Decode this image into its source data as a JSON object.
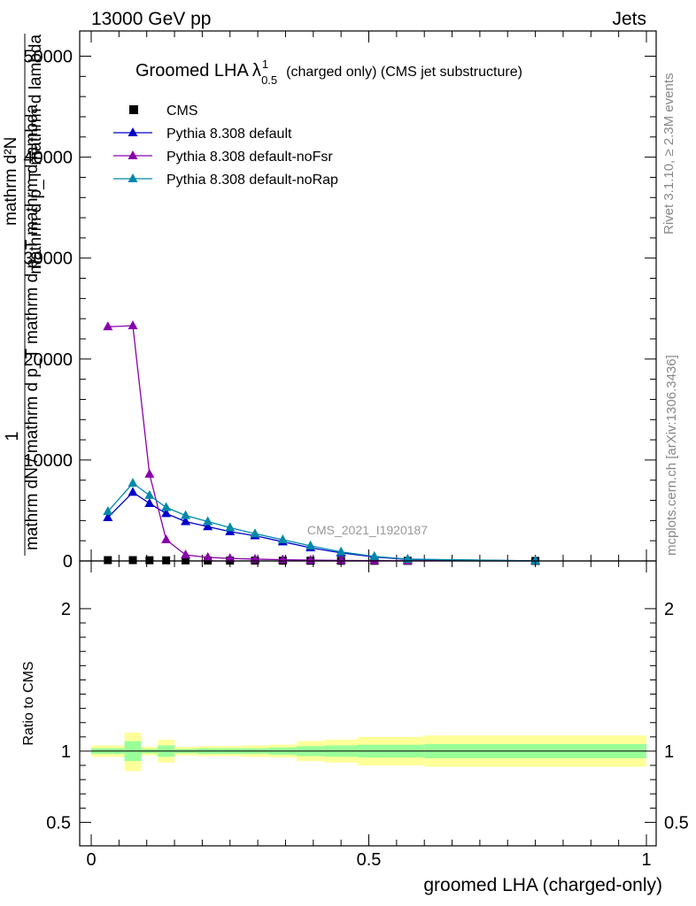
{
  "header": {
    "left": "13000 GeV pp",
    "right": "Jets"
  },
  "side_labels": {
    "rivet": "Rivet 3.1.10, ≥ 2.3M events",
    "mcplots": "mcplots.cern.ch [arXiv:1306.3436]"
  },
  "colors": {
    "cms": "#000000",
    "default": "#0000cc",
    "noFsr": "#8800aa",
    "noRap": "#0088aa",
    "band_inner": "#99ff99",
    "band_outer": "#ffff99"
  },
  "chart_data": [
    {
      "type": "line",
      "title_main": "Groomed LHA",
      "title_lambda": "λ",
      "title_sup": "1",
      "title_sub": "0.5",
      "title_rest": "(charged only) (CMS jet substructure)",
      "watermark": "CMS_2021_I1920187",
      "ylabel_num": "1",
      "ylabel_den": "mathrm dN / mathrm d p_T mathrm d p_T mathrm d lambda",
      "ylabel_den_2": "mathrm d²N",
      "ylabel_den_3": "mathrm d p_T mathrm d lambda",
      "xlim": [
        0,
        1
      ],
      "ylim": [
        0,
        52500
      ],
      "yticks": [
        0,
        10000,
        20000,
        30000,
        40000,
        50000
      ],
      "ytick_labels": [
        "0",
        "10000",
        "20000",
        "30000",
        "40000",
        "50000"
      ],
      "legend_position": "top-left",
      "series": [
        {
          "name": "CMS",
          "marker": "square",
          "x": [
            0.03,
            0.075,
            0.105,
            0.135,
            0.17,
            0.21,
            0.25,
            0.295,
            0.345,
            0.395,
            0.45,
            0.51,
            0.57,
            0.8
          ],
          "values": [
            80,
            80,
            70,
            60,
            50,
            40,
            35,
            30,
            25,
            20,
            15,
            12,
            8,
            2
          ]
        },
        {
          "name": "Pythia 8.308 default",
          "marker": "triangle",
          "x": [
            0.03,
            0.075,
            0.105,
            0.135,
            0.17,
            0.21,
            0.25,
            0.295,
            0.345,
            0.395,
            0.45,
            0.51,
            0.57,
            0.8
          ],
          "values": [
            4300,
            6800,
            5700,
            4700,
            3900,
            3400,
            2900,
            2500,
            1900,
            1300,
            800,
            400,
            150,
            10
          ]
        },
        {
          "name": "Pythia 8.308 default-noFsr",
          "marker": "triangle",
          "x": [
            0.03,
            0.075,
            0.105,
            0.135,
            0.17,
            0.21,
            0.25,
            0.295,
            0.345,
            0.395,
            0.45,
            0.51,
            0.57,
            0.8
          ],
          "values": [
            23200,
            23300,
            8600,
            2100,
            600,
            350,
            250,
            180,
            120,
            80,
            50,
            30,
            15,
            2
          ]
        },
        {
          "name": "Pythia 8.308 default-noRap",
          "marker": "triangle",
          "x": [
            0.03,
            0.075,
            0.105,
            0.135,
            0.17,
            0.21,
            0.25,
            0.295,
            0.345,
            0.395,
            0.45,
            0.51,
            0.57,
            0.8
          ],
          "values": [
            4900,
            7700,
            6500,
            5300,
            4500,
            3900,
            3300,
            2700,
            2100,
            1500,
            900,
            450,
            180,
            12
          ]
        }
      ]
    },
    {
      "type": "area",
      "ylabel": "Ratio to CMS",
      "xlabel": "groomed LHA (charged-only)",
      "xlim": [
        0,
        1
      ],
      "ylim": [
        0.335,
        2.335
      ],
      "xticks": [
        0,
        0.5,
        1
      ],
      "xtick_labels": [
        "0",
        "0.5",
        "1"
      ],
      "yticks": [
        0.5,
        1,
        2
      ],
      "ytick_labels": [
        "0.5",
        "1",
        "2"
      ],
      "bins": [
        {
          "lo": 0.0,
          "hi": 0.06,
          "inner": [
            0.98,
            1.02
          ],
          "outer": [
            0.96,
            1.04
          ]
        },
        {
          "lo": 0.06,
          "hi": 0.09,
          "inner": [
            0.93,
            1.07
          ],
          "outer": [
            0.86,
            1.13
          ]
        },
        {
          "lo": 0.09,
          "hi": 0.12,
          "inner": [
            0.985,
            1.015
          ],
          "outer": [
            0.97,
            1.03
          ]
        },
        {
          "lo": 0.12,
          "hi": 0.15,
          "inner": [
            0.96,
            1.04
          ],
          "outer": [
            0.92,
            1.08
          ]
        },
        {
          "lo": 0.15,
          "hi": 0.19,
          "inner": [
            0.985,
            1.015
          ],
          "outer": [
            0.97,
            1.03
          ]
        },
        {
          "lo": 0.19,
          "hi": 0.23,
          "inner": [
            0.98,
            1.02
          ],
          "outer": [
            0.965,
            1.035
          ]
        },
        {
          "lo": 0.23,
          "hi": 0.27,
          "inner": [
            0.98,
            1.02
          ],
          "outer": [
            0.965,
            1.035
          ]
        },
        {
          "lo": 0.27,
          "hi": 0.32,
          "inner": [
            0.98,
            1.02
          ],
          "outer": [
            0.96,
            1.04
          ]
        },
        {
          "lo": 0.32,
          "hi": 0.37,
          "inner": [
            0.975,
            1.025
          ],
          "outer": [
            0.955,
            1.045
          ]
        },
        {
          "lo": 0.37,
          "hi": 0.42,
          "inner": [
            0.965,
            1.035
          ],
          "outer": [
            0.93,
            1.07
          ]
        },
        {
          "lo": 0.42,
          "hi": 0.48,
          "inner": [
            0.96,
            1.04
          ],
          "outer": [
            0.92,
            1.08
          ]
        },
        {
          "lo": 0.48,
          "hi": 0.6,
          "inner": [
            0.955,
            1.045
          ],
          "outer": [
            0.9,
            1.1
          ]
        },
        {
          "lo": 0.6,
          "hi": 1.0,
          "inner": [
            0.95,
            1.05
          ],
          "outer": [
            0.89,
            1.11
          ]
        }
      ]
    }
  ]
}
